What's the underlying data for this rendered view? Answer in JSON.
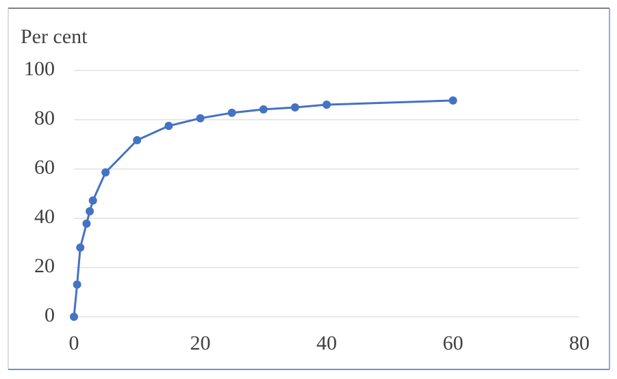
{
  "chart_data": {
    "type": "line",
    "y_label": "Per cent",
    "x": [
      0,
      0.5,
      1,
      2,
      2.5,
      3,
      5,
      10,
      15,
      20,
      25,
      30,
      35,
      40,
      60
    ],
    "series": [
      {
        "color": "#4472c4",
        "values": [
          0,
          13.1,
          28.1,
          37.8,
          42.8,
          47.2,
          58.6,
          71.7,
          77.5,
          80.6,
          82.8,
          84.2,
          85,
          86.1,
          87.8
        ]
      }
    ],
    "xlim": [
      0,
      80
    ],
    "xticks": [
      0,
      20,
      40,
      60,
      80
    ],
    "ylim": [
      0,
      100
    ],
    "yticks": [
      0,
      20,
      40,
      60,
      80,
      100
    ],
    "grid": true
  }
}
